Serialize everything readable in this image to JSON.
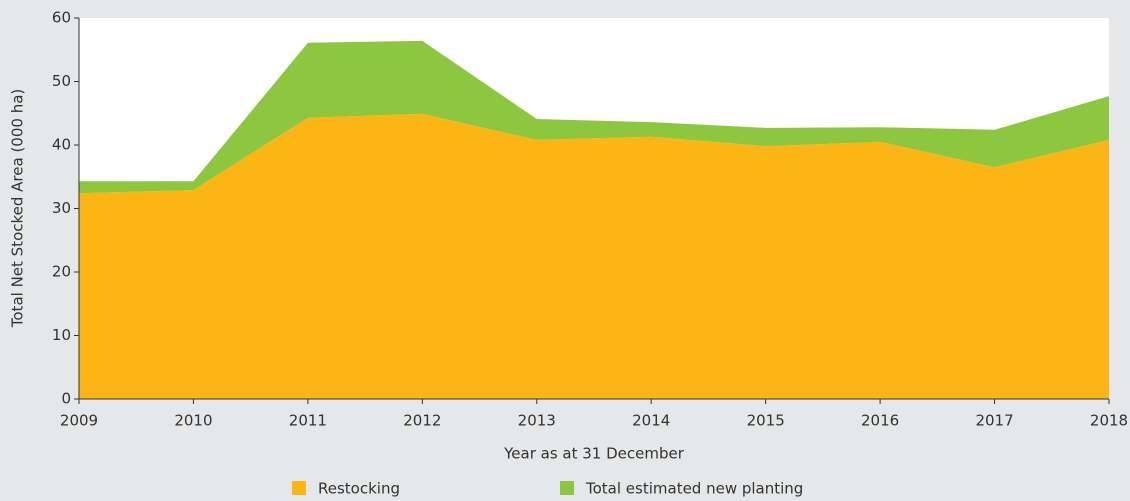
{
  "chart_data": {
    "type": "stacked_area",
    "xlabel": "Year as at 31 December",
    "ylabel": "Total Net Stocked Area (000 ha)",
    "x": [
      2009,
      2010,
      2011,
      2012,
      2013,
      2014,
      2015,
      2016,
      2017,
      2018
    ],
    "series": [
      {
        "name": "Restocking",
        "color": "#fbb615",
        "values": [
          32.4,
          32.9,
          44.3,
          44.9,
          40.8,
          41.3,
          39.8,
          40.5,
          36.5,
          40.8
        ]
      },
      {
        "name": "Total estimated new planting",
        "color": "#8dc63f",
        "values": [
          1.9,
          1.4,
          11.8,
          11.5,
          3.3,
          2.3,
          2.9,
          2.3,
          5.9,
          6.9
        ]
      }
    ],
    "xlim": [
      2009,
      2018
    ],
    "xticks": [
      2009,
      2010,
      2011,
      2012,
      2013,
      2014,
      2015,
      2016,
      2017,
      2018
    ],
    "ylim": [
      0,
      60
    ],
    "yticks": [
      0,
      10,
      20,
      30,
      40,
      50,
      60
    ],
    "legend": "bottom"
  }
}
